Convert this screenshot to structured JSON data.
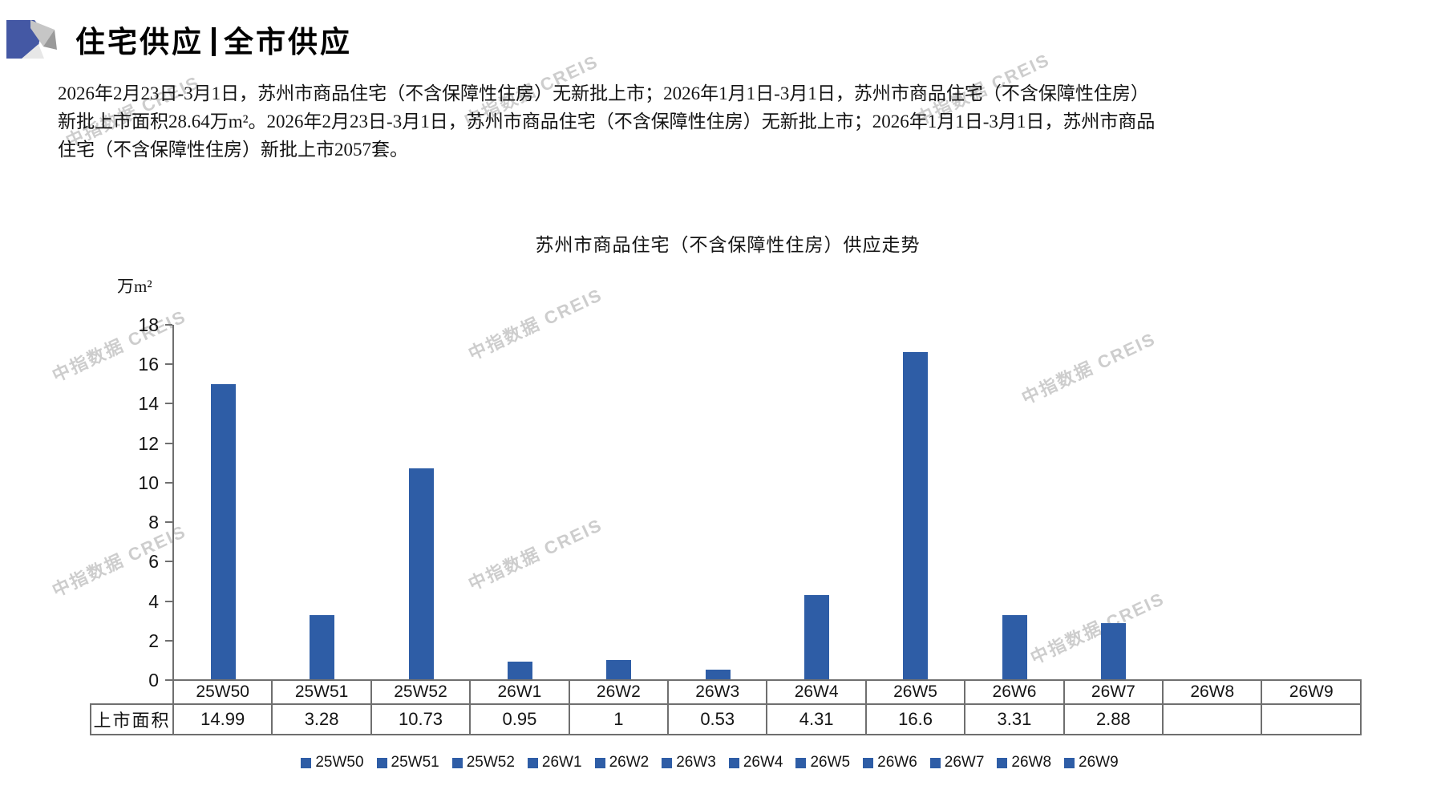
{
  "header": {
    "title_left": "住宅供应",
    "title_right": "全市供应"
  },
  "summary": {
    "lines": [
      "2026年2月23日-3月1日，苏州市商品住宅（不含保障性住房）无新批上市；2026年1月1日-3月1日，苏州市商品住宅（不含保障性住房）",
      "新批上市面积28.64万m²。2026年2月23日-3月1日，苏州市商品住宅（不含保障性住房）无新批上市；2026年1月1日-3月1日，苏州市商品",
      "住宅（不含保障性住房）新批上市2057套。"
    ]
  },
  "watermark": {
    "text": "中指数据 CREIS"
  },
  "chart_data": {
    "type": "bar",
    "title": "苏州市商品住宅（不含保障性住房）供应走势",
    "unit_label": "万m²",
    "categories": [
      "25W50",
      "25W51",
      "25W52",
      "26W1",
      "26W2",
      "26W3",
      "26W4",
      "26W5",
      "26W6",
      "26W7",
      "26W8",
      "26W9"
    ],
    "series": [
      {
        "name": "上市面积",
        "values": [
          14.99,
          3.28,
          10.73,
          0.95,
          1,
          0.53,
          4.31,
          16.6,
          3.31,
          2.88,
          null,
          null
        ]
      }
    ],
    "table_row_header": "上市面积",
    "table_values": [
      "14.99",
      "3.28",
      "10.73",
      "0.95",
      "1",
      "0.53",
      "4.31",
      "16.6",
      "3.31",
      "2.88",
      "",
      ""
    ],
    "ylim": [
      0,
      18
    ],
    "ytick_step": 2,
    "grid": false,
    "legend_position": "bottom",
    "bar_color": "#2E5DA6",
    "axis_color": "#6F6F6F",
    "logo_colors": {
      "blue": "#4458A4",
      "light_gray": "#C6C6C6",
      "mid_gray": "#9A9A9A",
      "pale_gray": "#E7E7E7"
    }
  }
}
